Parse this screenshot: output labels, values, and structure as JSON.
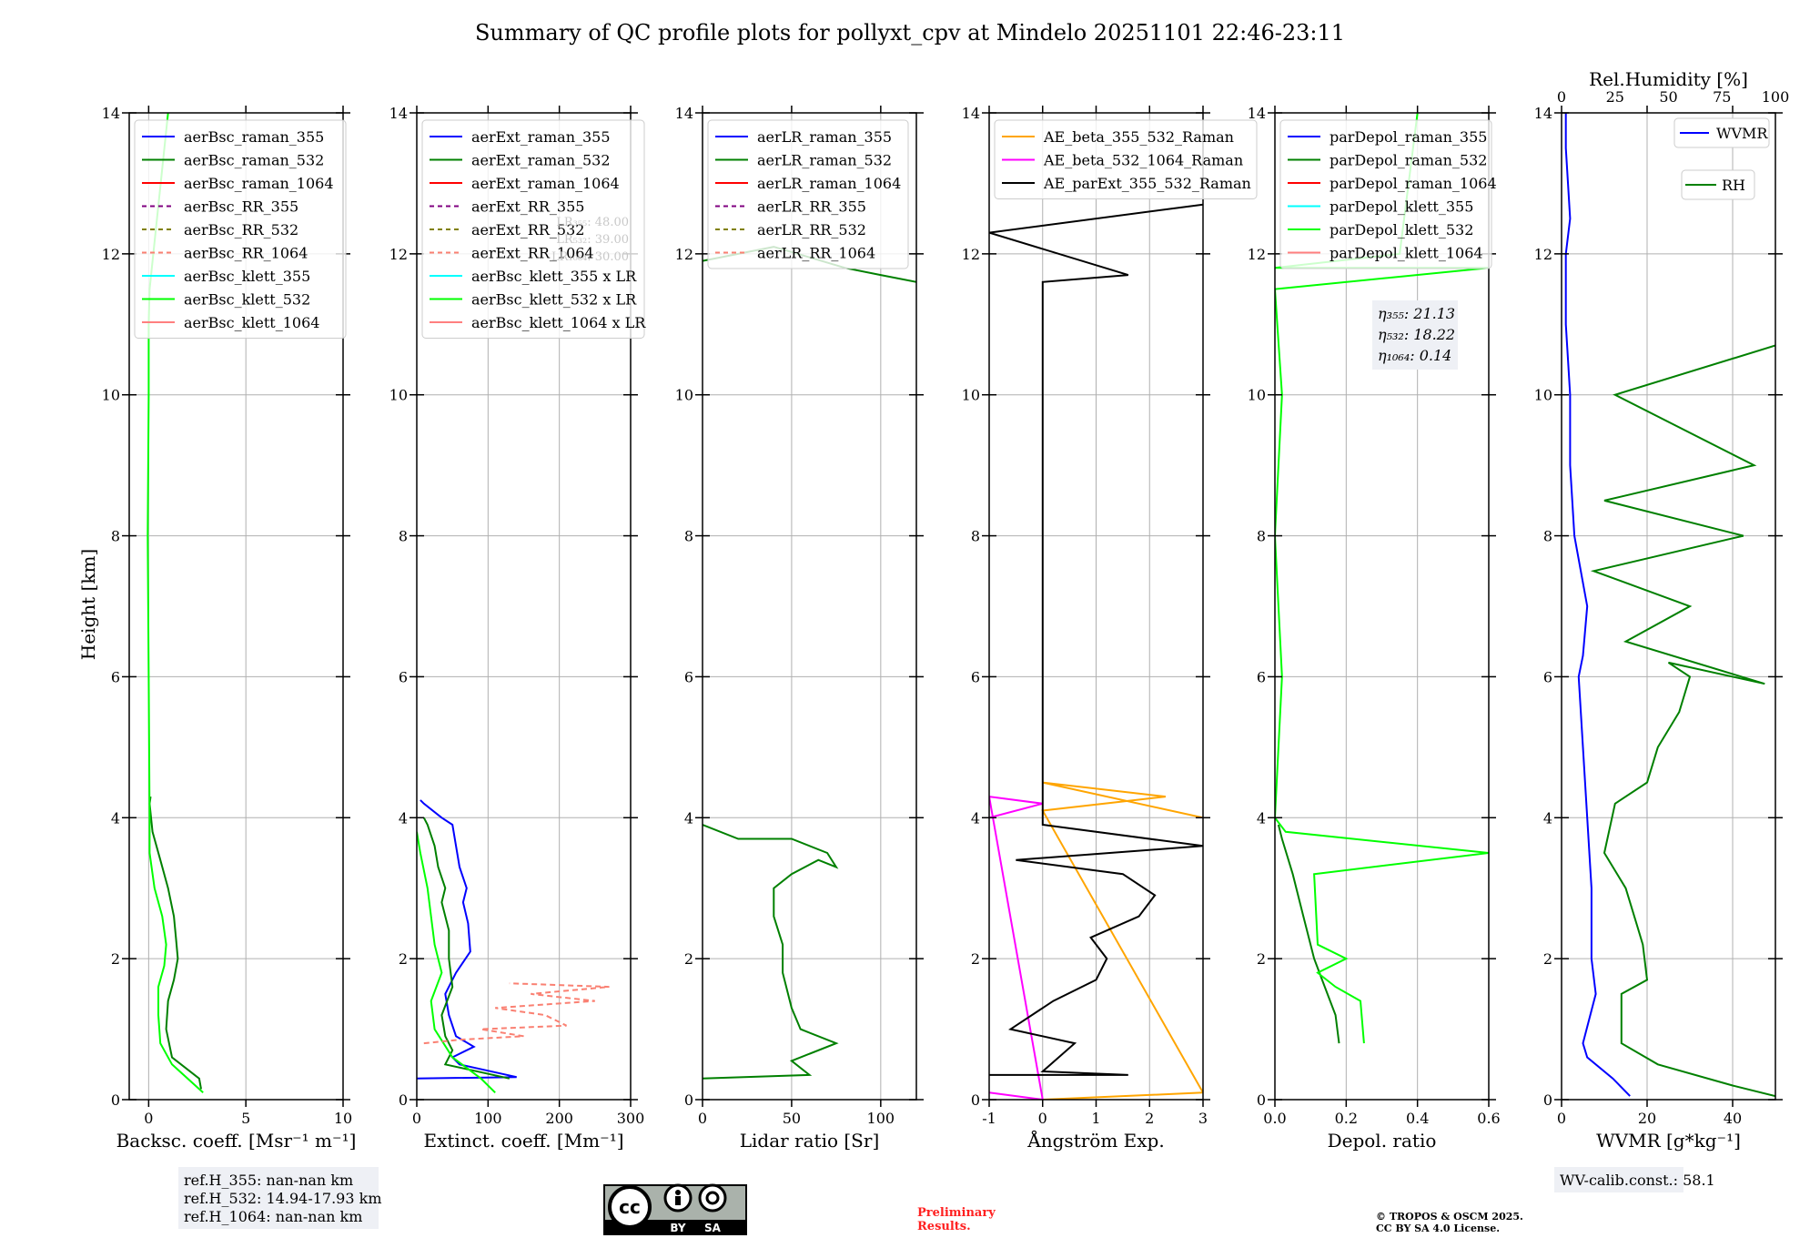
{
  "figure": {
    "title": "Summary of QC profile plots for pollyxt_cpv at Mindelo 20251101 22:46-23:11",
    "y_label": "Height [km]",
    "ref_heights": [
      "ref.H_355: nan-nan km",
      "ref.H_532: 14.94-17.93 km",
      "ref.H_1064: nan-nan km"
    ],
    "license_badge": {
      "by": "BY",
      "sa": "SA"
    },
    "preliminary": [
      "Preliminary",
      "Results."
    ],
    "copyright": [
      "© TROPOS & OSCM 2025.",
      "CC BY SA 4.0 License."
    ],
    "wv_calib": "WV-calib.const.: 58.1",
    "colors": {
      "blue": "#0000ff",
      "green": "#008000",
      "red": "#ff0000",
      "purple": "#800080",
      "olive": "#808000",
      "salmon": "#fa8072",
      "cyan": "#00ffff",
      "lime": "#00ff00",
      "lightred": "#ff7f7f",
      "orange": "#ffa500",
      "magenta": "#ff00ff",
      "black": "#000000"
    }
  },
  "chart_data": [
    {
      "type": "line",
      "xlabel": "Backsc. coeff. [Msr⁻¹ m⁻¹]",
      "ylabel": "Height [km]",
      "xlim": [
        -1,
        10
      ],
      "ylim": [
        0,
        14
      ],
      "xticks": [
        0,
        5,
        10
      ],
      "yticks": [
        0,
        2,
        4,
        6,
        8,
        10,
        12,
        14
      ],
      "legend": [
        "aerBsc_raman_355",
        "aerBsc_raman_532",
        "aerBsc_raman_1064",
        "aerBsc_RR_355",
        "aerBsc_RR_532",
        "aerBsc_RR_1064",
        "aerBsc_klett_355",
        "aerBsc_klett_532",
        "aerBsc_klett_1064"
      ],
      "series": [
        {
          "name": "aerBsc_raman_532",
          "color": "#008000",
          "x": [
            2.7,
            2.6,
            1.2,
            0.9,
            1.0,
            1.3,
            1.5,
            1.4,
            1.3,
            1.0,
            0.6,
            0.2,
            0.05,
            0.1
          ],
          "y": [
            0.15,
            0.3,
            0.6,
            1.0,
            1.4,
            1.7,
            2.0,
            2.3,
            2.6,
            3.0,
            3.4,
            3.8,
            4.2,
            4.3
          ]
        },
        {
          "name": "aerBsc_klett_532",
          "color": "#00ff00",
          "x": [
            2.8,
            2.0,
            1.2,
            0.6,
            0.5,
            0.5,
            0.8,
            0.9,
            0.7,
            0.3,
            0.05,
            0.05,
            0.0,
            -0.05,
            0.0,
            0.0,
            0.05,
            1.0
          ],
          "y": [
            0.1,
            0.3,
            0.5,
            0.8,
            1.2,
            1.6,
            1.9,
            2.2,
            2.6,
            3.0,
            3.5,
            4.0,
            6.0,
            8.0,
            10.0,
            11.0,
            11.5,
            14.0
          ]
        }
      ]
    },
    {
      "type": "line",
      "xlabel": "Extinct. coeff. [Mm⁻¹]",
      "ylabel": "",
      "xlim": [
        0,
        300
      ],
      "ylim": [
        0,
        14
      ],
      "xticks": [
        0,
        100,
        200,
        300
      ],
      "yticks": [
        0,
        2,
        4,
        6,
        8,
        10,
        12,
        14
      ],
      "legend": [
        "aerExt_raman_355",
        "aerExt_raman_532",
        "aerExt_raman_1064",
        "aerExt_RR_355",
        "aerExt_RR_532",
        "aerExt_RR_1064",
        "aerBsc_klett_355 x LR",
        "aerBsc_klett_532 x LR",
        "aerBsc_klett_1064 x LR"
      ],
      "lr_annotations": [
        "LR₃₅₅: 48.00",
        "LR₅₃₂: 39.00",
        "LR₁₀₆₄: 30.00"
      ],
      "series": [
        {
          "name": "aerExt_raman_355",
          "color": "#0000ff",
          "x": [
            0,
            140,
            60,
            50,
            80,
            55,
            45,
            40,
            55,
            75,
            72,
            65,
            70,
            60,
            55,
            50,
            35,
            10,
            5
          ],
          "y": [
            0.3,
            0.32,
            0.5,
            0.6,
            0.75,
            0.9,
            1.2,
            1.5,
            1.8,
            2.1,
            2.5,
            2.8,
            3.0,
            3.3,
            3.6,
            3.9,
            4.0,
            4.2,
            4.25
          ]
        },
        {
          "name": "aerExt_raman_532",
          "color": "#008000",
          "x": [
            130,
            40,
            50,
            40,
            35,
            50,
            45,
            45,
            35,
            40,
            30,
            25,
            15,
            10
          ],
          "y": [
            0.3,
            0.5,
            0.7,
            0.9,
            1.2,
            1.6,
            2.0,
            2.4,
            2.8,
            3.0,
            3.3,
            3.6,
            3.9,
            4.0
          ]
        },
        {
          "name": "aerBsc_klett_532 x LR",
          "color": "#00ff00",
          "x": [
            110,
            90,
            50,
            25,
            20,
            35,
            25,
            20,
            15,
            5,
            0
          ],
          "y": [
            0.1,
            0.3,
            0.6,
            1.0,
            1.4,
            1.8,
            2.2,
            2.6,
            3.0,
            3.5,
            3.8
          ]
        },
        {
          "name": "aerExt_RR_1064",
          "color": "#fa8072",
          "x": [
            10,
            60,
            150,
            90,
            210,
            180,
            110,
            250,
            160,
            270,
            130
          ],
          "y": [
            0.8,
            0.85,
            0.9,
            1.0,
            1.05,
            1.2,
            1.3,
            1.4,
            1.5,
            1.6,
            1.65
          ]
        }
      ]
    },
    {
      "type": "line",
      "xlabel": "Lidar ratio [Sr]",
      "ylabel": "",
      "xlim": [
        0,
        120
      ],
      "ylim": [
        0,
        14
      ],
      "xticks": [
        0,
        50,
        100
      ],
      "yticks": [
        0,
        2,
        4,
        6,
        8,
        10,
        12,
        14
      ],
      "legend": [
        "aerLR_raman_355",
        "aerLR_raman_532",
        "aerLR_raman_1064",
        "aerLR_RR_355",
        "aerLR_RR_532",
        "aerLR_RR_1064"
      ],
      "series": [
        {
          "name": "aerLR_raman_532",
          "color": "#008000",
          "x": [
            0,
            60,
            50,
            75,
            55,
            50,
            45,
            45,
            40,
            40,
            50,
            65,
            75,
            70,
            50,
            20,
            0
          ],
          "y": [
            0.3,
            0.35,
            0.55,
            0.8,
            1.0,
            1.3,
            1.8,
            2.2,
            2.6,
            3.0,
            3.2,
            3.4,
            3.3,
            3.5,
            3.7,
            3.7,
            3.9
          ]
        },
        {
          "name": "aerLR_raman_532_upper",
          "color": "#008000",
          "x": [
            0,
            20,
            40,
            60,
            80,
            100,
            120
          ],
          "y": [
            11.9,
            12.0,
            12.1,
            11.95,
            11.8,
            11.7,
            11.6
          ]
        }
      ]
    },
    {
      "type": "line",
      "xlabel": "Ångström Exp.",
      "ylabel": "",
      "xlim": [
        -1,
        3
      ],
      "ylim": [
        0,
        14
      ],
      "xticks": [
        -1,
        0,
        1,
        2,
        3
      ],
      "yticks": [
        0,
        2,
        4,
        6,
        8,
        10,
        12,
        14
      ],
      "legend": [
        "AE_beta_355_532_Raman",
        "AE_beta_532_1064_Raman",
        "AE_parExt_355_532_Raman"
      ],
      "series": [
        {
          "name": "AE_beta_355_532_Raman",
          "color": "#ffa500",
          "x": [
            0,
            3,
            0,
            2.3,
            0,
            3
          ],
          "y": [
            0.0,
            0.1,
            4.1,
            4.3,
            4.5,
            4.0
          ]
        },
        {
          "name": "AE_beta_532_1064_Raman",
          "color": "#ff00ff",
          "x": [
            -1,
            0,
            -1,
            0,
            -1
          ],
          "y": [
            0.1,
            0.0,
            4.3,
            4.2,
            4.0
          ]
        },
        {
          "name": "AE_parExt_355_532_Raman",
          "color": "#000000",
          "x": [
            -1,
            1.6,
            0.0,
            0.6,
            -0.6,
            0.2,
            1.0,
            1.2,
            0.9,
            1.8,
            2.1,
            1.5,
            -0.5,
            3,
            0,
            0,
            1.6,
            -1,
            3
          ],
          "y": [
            0.35,
            0.35,
            0.4,
            0.8,
            1.0,
            1.4,
            1.7,
            2.0,
            2.3,
            2.6,
            2.9,
            3.2,
            3.4,
            3.6,
            3.9,
            11.6,
            11.7,
            12.3,
            12.7
          ]
        }
      ]
    },
    {
      "type": "line",
      "xlabel": "Depol. ratio",
      "ylabel": "",
      "xlim": [
        0,
        0.6
      ],
      "ylim": [
        0,
        14
      ],
      "xticks": [
        0.0,
        0.2,
        0.4,
        0.6
      ],
      "yticks": [
        0,
        2,
        4,
        6,
        8,
        10,
        12,
        14
      ],
      "legend": [
        "parDepol_raman_355",
        "parDepol_raman_532",
        "parDepol_raman_1064",
        "parDepol_klett_355",
        "parDepol_klett_532",
        "parDepol_klett_1064"
      ],
      "eta_annotations": [
        "η₃₅₅: 21.13",
        "η₅₃₂: 18.22",
        "η₁₀₆₄: 0.14"
      ],
      "series": [
        {
          "name": "parDepol_raman_532",
          "color": "#008000",
          "x": [
            0.18,
            0.17,
            0.14,
            0.11,
            0.08,
            0.05,
            0.02,
            0.01
          ],
          "y": [
            0.8,
            1.2,
            1.6,
            2.0,
            2.6,
            3.2,
            3.7,
            3.9
          ]
        },
        {
          "name": "parDepol_klett_532",
          "color": "#00ff00",
          "x": [
            0.25,
            0.24,
            0.17,
            0.12,
            0.2,
            0.12,
            0.11,
            0.6,
            0.03,
            0.0,
            0.02,
            0.0,
            0.02,
            0.0,
            0.6,
            0.0,
            0.35,
            0.4
          ],
          "y": [
            0.8,
            1.4,
            1.6,
            1.8,
            2.0,
            2.2,
            3.2,
            3.5,
            3.8,
            4.0,
            6.0,
            8.0,
            10.0,
            11.5,
            11.8,
            11.8,
            12.0,
            14.0
          ]
        }
      ]
    },
    {
      "type": "line",
      "xlabel": "WVMR [g*kg⁻¹]",
      "x2label": "Rel.Humidity [%]",
      "ylabel": "",
      "xlim": [
        0,
        50
      ],
      "x2lim": [
        0,
        100
      ],
      "ylim": [
        0,
        14
      ],
      "xticks": [
        0,
        20,
        40
      ],
      "x2ticks": [
        0,
        25,
        50,
        75,
        100
      ],
      "yticks": [
        0,
        2,
        4,
        6,
        8,
        10,
        12,
        14
      ],
      "legend": [
        "WVMR",
        "RH"
      ],
      "series": [
        {
          "name": "WVMR",
          "color": "#0000ff",
          "x": [
            16,
            12,
            6,
            5,
            8,
            7,
            7,
            6,
            5,
            4,
            5,
            6,
            3,
            2,
            2,
            1,
            1,
            2,
            1,
            1
          ],
          "y": [
            0.05,
            0.3,
            0.6,
            0.8,
            1.5,
            2.0,
            3.0,
            4.0,
            5.0,
            6.0,
            6.3,
            7.0,
            8.0,
            9.0,
            10.0,
            11.0,
            12.0,
            12.5,
            13.5,
            14.0
          ]
        },
        {
          "name": "RH",
          "color": "#008000",
          "x": [
            100,
            80,
            45,
            28,
            28,
            40,
            38,
            35,
            30,
            20,
            25,
            40,
            45,
            55,
            60,
            50,
            95,
            30,
            60,
            15,
            85,
            20,
            90,
            25,
            100
          ],
          "y": [
            0.05,
            0.2,
            0.5,
            0.8,
            1.5,
            1.7,
            2.2,
            2.5,
            3.0,
            3.5,
            4.2,
            4.5,
            5.0,
            5.5,
            6.0,
            6.2,
            5.9,
            6.5,
            7.0,
            7.5,
            8.0,
            8.5,
            9.0,
            10.0,
            10.7
          ]
        }
      ]
    }
  ]
}
